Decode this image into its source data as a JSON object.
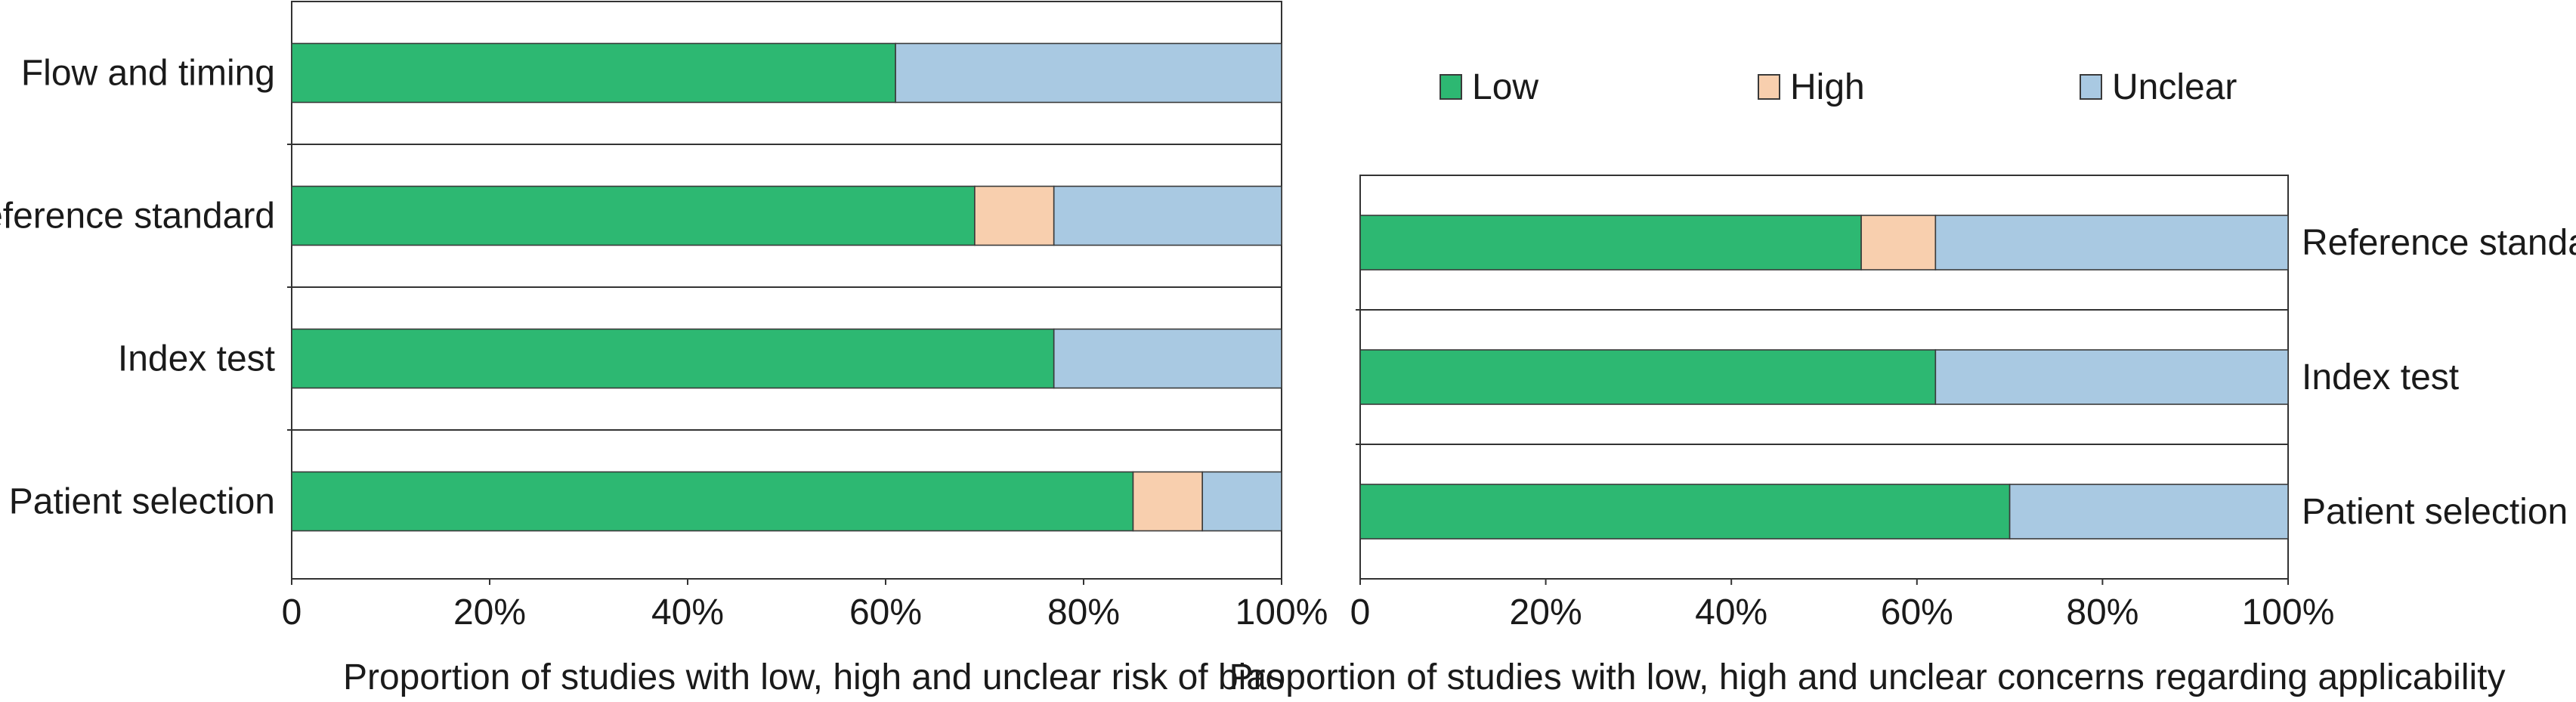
{
  "colors": {
    "Low": "#2db872",
    "High": "#f8cfae",
    "Unclear": "#a9c9e2",
    "axis": "#333333",
    "bar_outline": "#3a3a3a"
  },
  "legend": {
    "items": [
      {
        "label": "Low",
        "color": "#2db872"
      },
      {
        "label": "High",
        "color": "#f8cfae"
      },
      {
        "label": "Unclear",
        "color": "#a9c9e2"
      }
    ],
    "placement": "top-right"
  },
  "chart_data": [
    {
      "type": "bar",
      "orientation": "horizontal",
      "stacked": true,
      "categories": [
        "Flow and timing",
        "Reference standard",
        "Index test",
        "Patient selection"
      ],
      "series": [
        {
          "name": "Low",
          "values": [
            61,
            69,
            77,
            85
          ]
        },
        {
          "name": "High",
          "values": [
            0,
            8,
            0,
            7
          ]
        },
        {
          "name": "Unclear",
          "values": [
            39,
            23,
            23,
            8
          ]
        }
      ],
      "xlim": [
        0,
        100
      ],
      "xticks": [
        "0",
        "20%",
        "40%",
        "60%",
        "80%",
        "100%"
      ],
      "xlabel": "Proportion of studies with low, high and unclear risk of bias",
      "ylabel": "",
      "title": "",
      "grid": false
    },
    {
      "type": "bar",
      "orientation": "horizontal",
      "stacked": true,
      "categories": [
        "Reference standard",
        "Index test",
        "Patient selection"
      ],
      "series": [
        {
          "name": "Low",
          "values": [
            54,
            62,
            70
          ]
        },
        {
          "name": "High",
          "values": [
            8,
            0,
            0
          ]
        },
        {
          "name": "Unclear",
          "values": [
            38,
            38,
            30
          ]
        }
      ],
      "xlim": [
        0,
        100
      ],
      "xticks": [
        "0",
        "20%",
        "40%",
        "60%",
        "80%",
        "100%"
      ],
      "xlabel": "Proportion of studies with low, high and unclear concerns regarding applicability",
      "ylabel": "",
      "title": "",
      "grid": false
    }
  ]
}
